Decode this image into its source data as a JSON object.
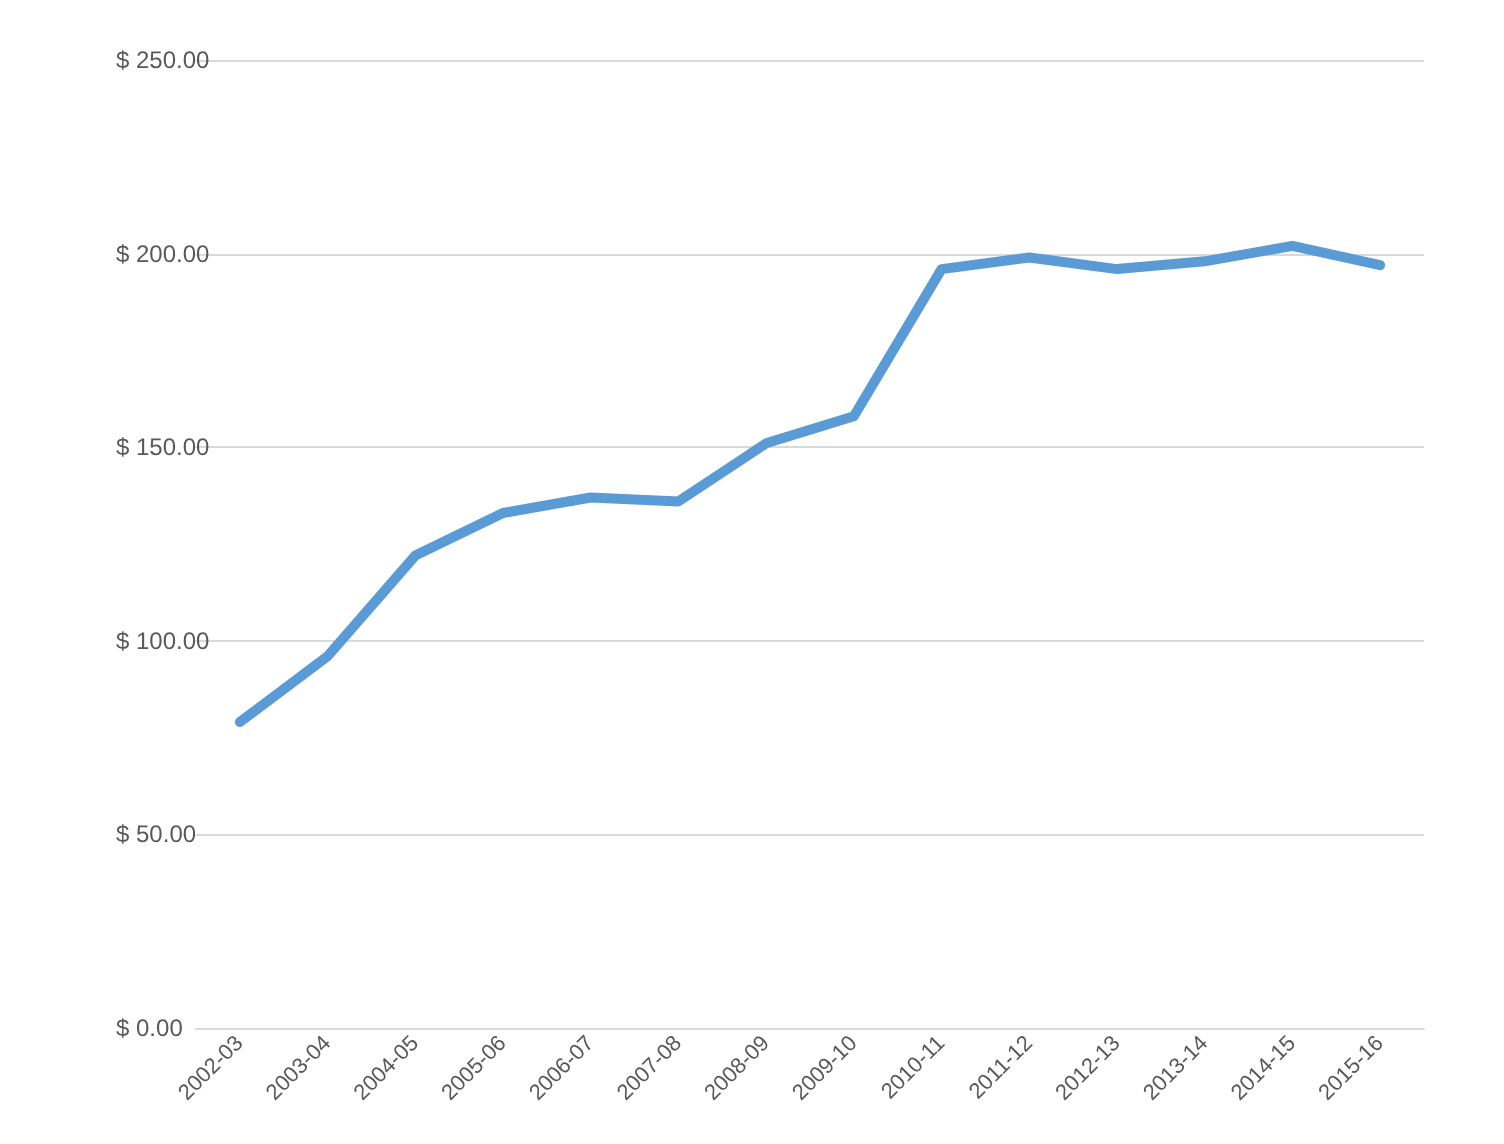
{
  "chart_data": {
    "type": "line",
    "categories": [
      "2002-03",
      "2003-04",
      "2004-05",
      "2005-06",
      "2006-07",
      "2007-08",
      "2008-09",
      "2009-10",
      "2010-11",
      "2011-12",
      "2012-13",
      "2013-14",
      "2014-15",
      "2015-16"
    ],
    "series": [
      {
        "color": "#5b9bd5",
        "values": [
          79,
          96,
          122,
          133,
          137,
          136,
          151,
          158,
          196,
          199,
          196,
          198,
          202,
          197
        ]
      }
    ],
    "ylim": [
      0,
      250
    ],
    "yticks": [
      {
        "value": 0,
        "label": "$ 0.00"
      },
      {
        "value": 50,
        "label": "$ 50.00"
      },
      {
        "value": 100,
        "label": "$ 100.00"
      },
      {
        "value": 150,
        "label": "$ 150.00"
      },
      {
        "value": 200,
        "label": "$ 200.00"
      },
      {
        "value": 250,
        "label": "$ 250.00"
      }
    ],
    "grid": "y",
    "marker": "none",
    "line_style": "solid"
  }
}
